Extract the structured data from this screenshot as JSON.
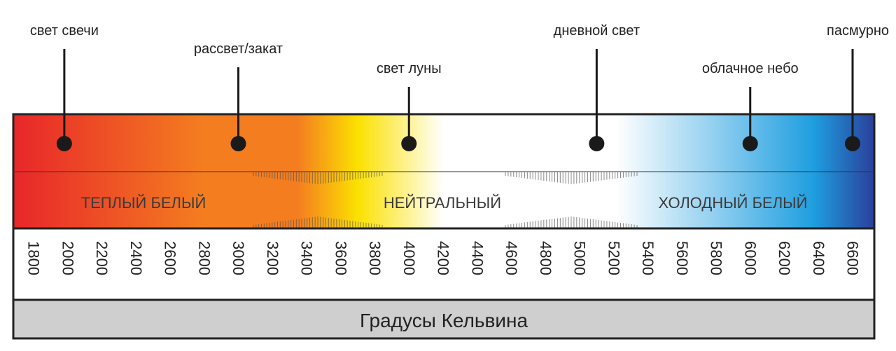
{
  "sources": [
    {
      "label": "свет свечи",
      "kelvin": 1980
    },
    {
      "label": "рассвет/закат",
      "kelvin": 3000
    },
    {
      "label": "свет луны",
      "kelvin": 4000
    },
    {
      "label": "дневной свет",
      "kelvin": 5100
    },
    {
      "label": "облачное небо",
      "kelvin": 6000
    },
    {
      "label": "пасмурно",
      "kelvin": 6600
    }
  ],
  "zones": [
    {
      "label": "ТЕПЛЫЙ БЕЛЫЙ"
    },
    {
      "label": "НЕЙТРАЛЬНЫЙ"
    },
    {
      "label": "ХОЛОДНЫЙ БЕЛЫЙ"
    }
  ],
  "scale": {
    "ticks": [
      "1800",
      "2000",
      "2200",
      "2400",
      "2600",
      "2800",
      "3000",
      "3200",
      "3400",
      "3600",
      "3800",
      "4000",
      "4200",
      "4400",
      "4600",
      "4800",
      "5000",
      "5200",
      "5400",
      "5600",
      "5800",
      "6000",
      "6200",
      "6400",
      "6600"
    ]
  },
  "footer": {
    "caption": "Градусы Кельвина"
  },
  "colors": {
    "red": "#e8262a",
    "orange": "#f47d20",
    "yellow": "#fbe100",
    "neutral_white": "#ffffff",
    "light_blue": "#8ccdef",
    "blue": "#1e9edf",
    "deep_blue": "#2a3f9a",
    "marker": "#1a1a1a",
    "caption_band": "#cfcfcf"
  }
}
